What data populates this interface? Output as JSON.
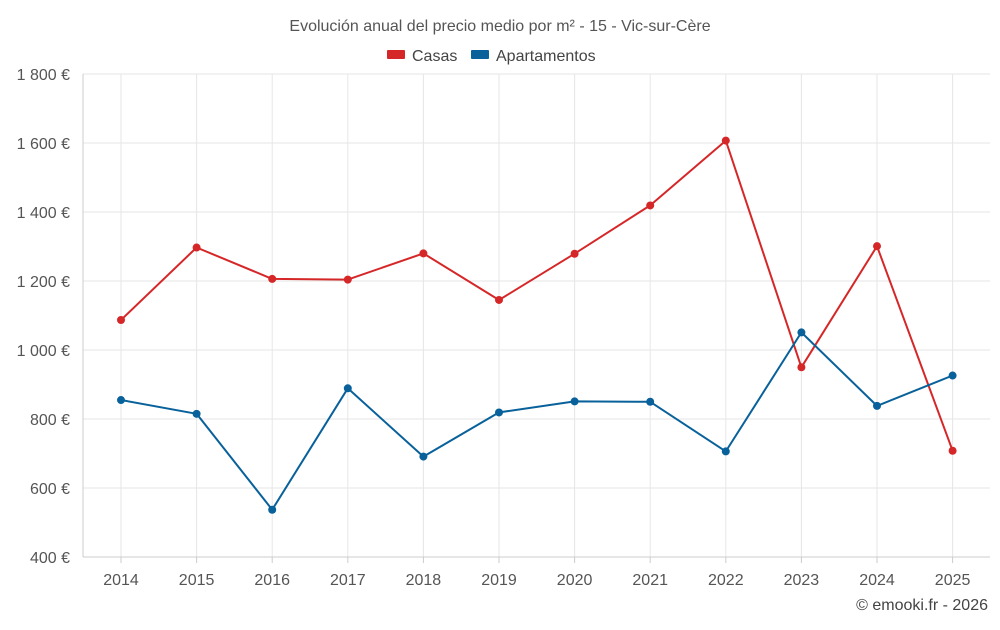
{
  "chart_data": {
    "type": "line",
    "title": "Evolución anual del precio medio por m² - 15 - Vic-sur-Cère",
    "xlabel": "",
    "ylabel": "",
    "categories": [
      "2014",
      "2015",
      "2016",
      "2017",
      "2018",
      "2019",
      "2020",
      "2021",
      "2022",
      "2023",
      "2024",
      "2025"
    ],
    "ylim": [
      400,
      1800
    ],
    "yticks": [
      400,
      600,
      800,
      1000,
      1200,
      1400,
      1600,
      1800
    ],
    "ytick_labels": [
      "400 €",
      "600 €",
      "800 €",
      "1 000 €",
      "1 200 €",
      "1 400 €",
      "1 600 €",
      "1 800 €"
    ],
    "grid": true,
    "legend_position": "top-center",
    "series": [
      {
        "name": "Casas",
        "color": "#d62728",
        "values": [
          1087,
          1297,
          1206,
          1204,
          1280,
          1145,
          1279,
          1419,
          1607,
          950,
          1301,
          708
        ]
      },
      {
        "name": "Apartamentos",
        "color": "#08619a",
        "values": [
          855,
          815,
          537,
          889,
          691,
          819,
          851,
          850,
          706,
          1051,
          838,
          926
        ]
      }
    ],
    "credit": "© emooki.fr - 2026"
  }
}
